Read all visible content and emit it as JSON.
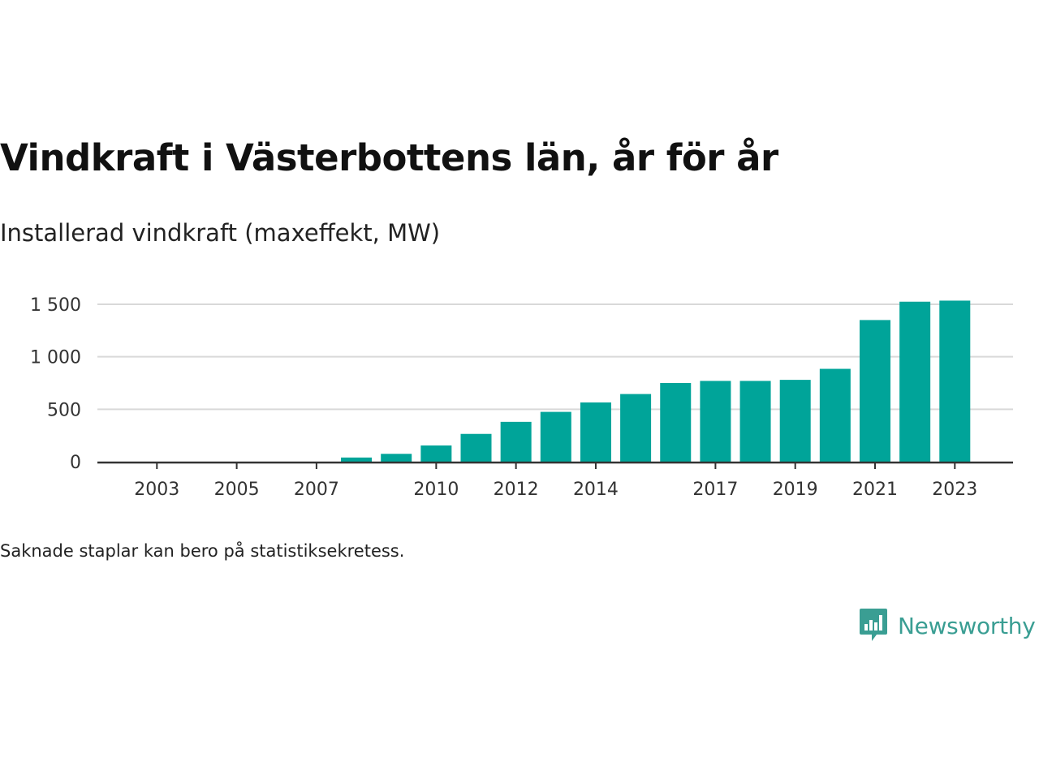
{
  "title": "Vindkraft i Västerbottens län, år för år",
  "subtitle": "Installerad vindkraft (maxeffekt, MW)",
  "note": "Saknade staplar kan bero på statistiksekretess.",
  "brand": {
    "name": "Newsworthy",
    "color": "#3a9e93",
    "icon": "newsworthy-logo-icon"
  },
  "colors": {
    "bar": "#00a499",
    "grid": "#d9d9d9",
    "axis": "#333333"
  },
  "chart_data": {
    "type": "bar",
    "categories": [
      "2001",
      "2002",
      "2003",
      "2004",
      "2005",
      "2006",
      "2007",
      "2008",
      "2009",
      "2010",
      "2011",
      "2012",
      "2013",
      "2014",
      "2015",
      "2016",
      "2017",
      "2018",
      "2019",
      "2020",
      "2021",
      "2022",
      "2023"
    ],
    "values": [
      0,
      0,
      0,
      0,
      0,
      0,
      0,
      40,
      75,
      155,
      265,
      380,
      475,
      565,
      645,
      750,
      770,
      770,
      780,
      885,
      1350,
      1525,
      1535
    ],
    "x_tick_labels": [
      "2003",
      "2005",
      "2007",
      "2010",
      "2012",
      "2014",
      "2017",
      "2019",
      "2021",
      "2023"
    ],
    "y_ticks": [
      0,
      500,
      1000,
      1500
    ],
    "y_tick_labels": [
      "0",
      "500",
      "1 000",
      "1 500"
    ],
    "ylim": [
      0,
      1500
    ],
    "grid": true,
    "xlabel": "",
    "ylabel": ""
  }
}
